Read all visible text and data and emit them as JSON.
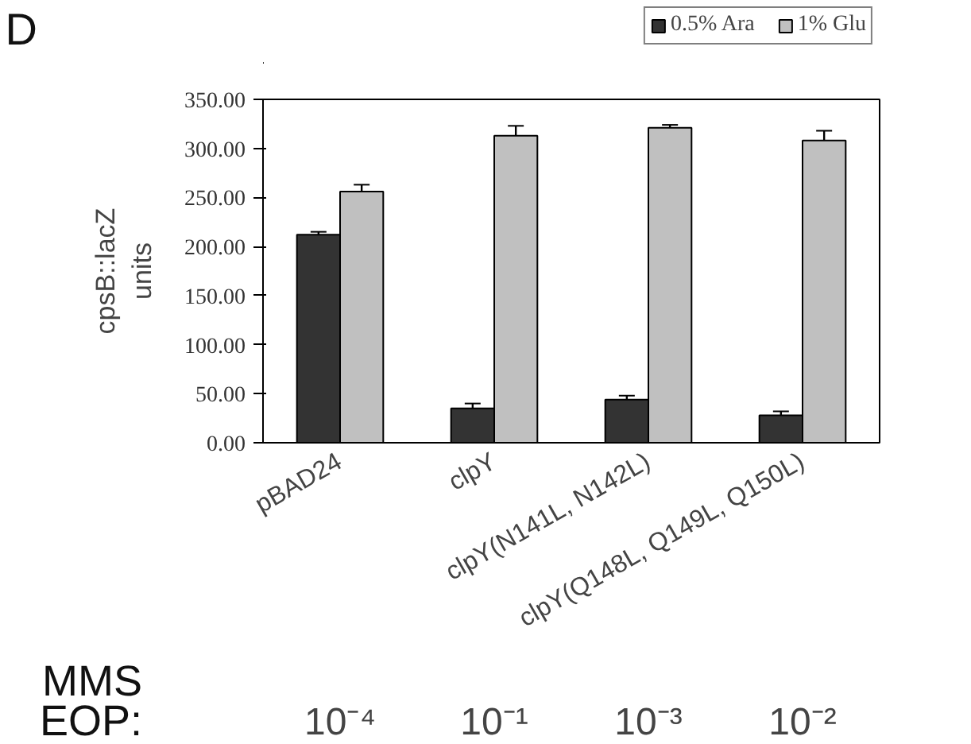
{
  "chart_data": {
    "type": "bar",
    "ylabel": "cpsB::lacZ\nunits",
    "categories": [
      "pBAD24",
      "clpY",
      "clpY(N141L, N142L)",
      "clpY(Q148L, Q149L, Q150L)"
    ],
    "series": [
      {
        "name": "0.5% Ara",
        "color": "#333333",
        "values": [
          212,
          35,
          44,
          28
        ],
        "errors": [
          3,
          5,
          4,
          4
        ]
      },
      {
        "name": "1% Glu",
        "color": "#c0c0c0",
        "values": [
          256,
          313,
          321,
          308
        ],
        "errors": [
          7,
          10,
          3,
          10
        ]
      }
    ],
    "ylim": [
      0,
      350
    ],
    "yticks": [
      {
        "value": 0,
        "label": "0.00"
      },
      {
        "value": 50,
        "label": "50.00"
      },
      {
        "value": 100,
        "label": "100.00"
      },
      {
        "value": 150,
        "label": "150.00"
      },
      {
        "value": 200,
        "label": "200.00"
      },
      {
        "value": 250,
        "label": "250.00"
      },
      {
        "value": 300,
        "label": "300.00"
      },
      {
        "value": 350,
        "label": "350.00"
      }
    ],
    "legend": "top right",
    "grid": false,
    "annotations": [
      "D",
      "MMS\nEOP:",
      "10⁻⁴",
      "10⁻¹",
      "10⁻³",
      "10⁻²"
    ]
  }
}
